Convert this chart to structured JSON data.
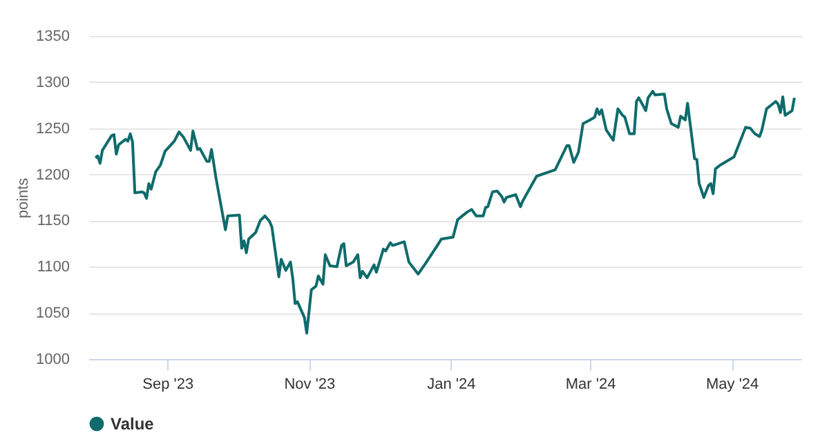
{
  "chart_data": {
    "type": "line",
    "ylabel": "points",
    "x": [
      "2023-08-01",
      "2023-08-02",
      "2023-08-03",
      "2023-08-04",
      "2023-08-08",
      "2023-08-09",
      "2023-08-10",
      "2023-08-11",
      "2023-08-13",
      "2023-08-14",
      "2023-08-15",
      "2023-08-16",
      "2023-08-17",
      "2023-08-18",
      "2023-08-21",
      "2023-08-22",
      "2023-08-23",
      "2023-08-24",
      "2023-08-25",
      "2023-08-27",
      "2023-08-29",
      "2023-08-31",
      "2023-09-04",
      "2023-09-06",
      "2023-09-08",
      "2023-09-11",
      "2023-09-12",
      "2023-09-14",
      "2023-09-15",
      "2023-09-18",
      "2023-09-19",
      "2023-09-20",
      "2023-09-22",
      "2023-09-26",
      "2023-09-27",
      "2023-10-02",
      "2023-10-03",
      "2023-10-04",
      "2023-10-05",
      "2023-10-06",
      "2023-10-09",
      "2023-10-11",
      "2023-10-13",
      "2023-10-15",
      "2023-10-16",
      "2023-10-19",
      "2023-10-20",
      "2023-10-22",
      "2023-10-24",
      "2023-10-25",
      "2023-10-26",
      "2023-10-27",
      "2023-10-30",
      "2023-10-31",
      "2023-11-02",
      "2023-11-04",
      "2023-11-05",
      "2023-11-07",
      "2023-11-08",
      "2023-11-10",
      "2023-11-13",
      "2023-11-15",
      "2023-11-16",
      "2023-11-17",
      "2023-11-20",
      "2023-11-22",
      "2023-11-23",
      "2023-11-24",
      "2023-11-26",
      "2023-11-29",
      "2023-11-30",
      "2023-12-03",
      "2023-12-04",
      "2023-12-06",
      "2023-12-07",
      "2023-12-12",
      "2023-12-14",
      "2023-12-18",
      "2023-12-21",
      "2023-12-26",
      "2023-12-28",
      "2024-01-02",
      "2024-01-04",
      "2024-01-08",
      "2024-01-10",
      "2024-01-12",
      "2024-01-15",
      "2024-01-16",
      "2024-01-17",
      "2024-01-19",
      "2024-01-21",
      "2024-01-23",
      "2024-01-24",
      "2024-01-25",
      "2024-01-29",
      "2024-01-31",
      "2024-02-01",
      "2024-02-05",
      "2024-02-07",
      "2024-02-15",
      "2024-02-20",
      "2024-02-21",
      "2024-02-23",
      "2024-02-25",
      "2024-02-27",
      "2024-03-01",
      "2024-03-03",
      "2024-03-04",
      "2024-03-05",
      "2024-03-06",
      "2024-03-08",
      "2024-03-11",
      "2024-03-13",
      "2024-03-15",
      "2024-03-16",
      "2024-03-18",
      "2024-03-20",
      "2024-03-21",
      "2024-03-22",
      "2024-03-25",
      "2024-03-26",
      "2024-03-28",
      "2024-03-29",
      "2024-04-02",
      "2024-04-03",
      "2024-04-05",
      "2024-04-08",
      "2024-04-09",
      "2024-04-11",
      "2024-04-12",
      "2024-04-15",
      "2024-04-16",
      "2024-04-17",
      "2024-04-19",
      "2024-04-21",
      "2024-04-22",
      "2024-04-23",
      "2024-04-24",
      "2024-04-25",
      "2024-04-26",
      "2024-05-02",
      "2024-05-07",
      "2024-05-09",
      "2024-05-11",
      "2024-05-13",
      "2024-05-14",
      "2024-05-16",
      "2024-05-18",
      "2024-05-20",
      "2024-05-21",
      "2024-05-22",
      "2024-05-23",
      "2024-05-24",
      "2024-05-27",
      "2024-05-28"
    ],
    "series": [
      {
        "name": "Value",
        "color": "#0f6b6b",
        "values": [
          1218,
          1220,
          1212,
          1226,
          1242,
          1243,
          1222,
          1232,
          1236,
          1238,
          1236,
          1244,
          1235,
          1180,
          1181,
          1180,
          1174,
          1190,
          1184,
          1203,
          1210,
          1225,
          1236,
          1246,
          1240,
          1226,
          1247,
          1227,
          1228,
          1214,
          1214,
          1227,
          1195,
          1140,
          1155,
          1156,
          1120,
          1128,
          1115,
          1130,
          1137,
          1150,
          1155,
          1149,
          1143,
          1089,
          1108,
          1096,
          1105,
          1087,
          1060,
          1062,
          1045,
          1028,
          1075,
          1079,
          1090,
          1081,
          1113,
          1101,
          1100,
          1123,
          1125,
          1101,
          1105,
          1113,
          1088,
          1095,
          1088,
          1102,
          1094,
          1119,
          1117,
          1126,
          1123,
          1127,
          1105,
          1092,
          1103,
          1122,
          1130,
          1132,
          1151,
          1159,
          1162,
          1155,
          1155,
          1164,
          1165,
          1181,
          1182,
          1176,
          1170,
          1175,
          1178,
          1165,
          1171,
          1189,
          1198,
          1205,
          1231,
          1231,
          1213,
          1224,
          1255,
          1259,
          1262,
          1271,
          1265,
          1270,
          1248,
          1237,
          1271,
          1264,
          1262,
          1244,
          1244,
          1279,
          1283,
          1269,
          1283,
          1290,
          1286,
          1287,
          1271,
          1255,
          1251,
          1263,
          1259,
          1277,
          1217,
          1216,
          1190,
          1175,
          1188,
          1190,
          1179,
          1206,
          1208,
          1210,
          1219,
          1251,
          1250,
          1244,
          1241,
          1248,
          1271,
          1275,
          1279,
          1276,
          1267,
          1284,
          1264,
          1269,
          1283
        ]
      }
    ],
    "xlim": [
      "2023-07-29",
      "2024-05-31"
    ],
    "xticks": [
      {
        "value": "2023-09-01",
        "label": "Sep '23"
      },
      {
        "value": "2023-11-01",
        "label": "Nov '23"
      },
      {
        "value": "2024-01-01",
        "label": "Jan '24"
      },
      {
        "value": "2024-03-01",
        "label": "Mar '24"
      },
      {
        "value": "2024-05-01",
        "label": "May '24"
      }
    ],
    "ylim": [
      1000,
      1350
    ],
    "yticks": [
      1000,
      1050,
      1100,
      1150,
      1200,
      1250,
      1300,
      1350
    ],
    "grid": "y",
    "legend": "bottom",
    "marker": "none",
    "line_style": "solid"
  }
}
